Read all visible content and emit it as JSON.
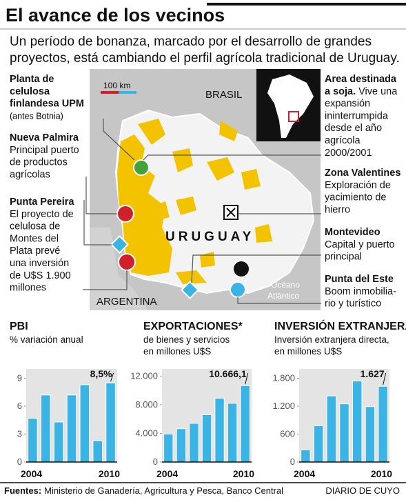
{
  "header": {
    "title": "El avance de los vecinos",
    "subtitle": [
      "Un período de bonanza, marcado por el desarrollo de grandes",
      "proyectos, está cambiando el perfil agrícola tradicional de Uruguay."
    ]
  },
  "map": {
    "scale": "100 km",
    "brasil": "BRASIL",
    "uruguay": "URUGUAY",
    "argentina": "ARGENTINA",
    "ocean": [
      "Océano",
      "Atlántico"
    ]
  },
  "annotations": {
    "upm": {
      "title": [
        "Planta de",
        "celulosa",
        "finlandesa UPM"
      ],
      "text": [
        "(antes Botnia)"
      ]
    },
    "palmira": {
      "title": [
        "Nueva Palmira"
      ],
      "text": [
        "Principal puerto",
        "de productos",
        "agrícolas"
      ]
    },
    "pereira": {
      "title": [
        "Punta Pereira"
      ],
      "text": [
        "El proyecto de",
        "celulosa de",
        "Montes del",
        "Plata prevé",
        "una inversión",
        "de U$S 1.900",
        "millones"
      ]
    },
    "soja": {
      "title": [
        "Area destinada",
        "a soja."
      ],
      "text": [
        "Vive una",
        "expansión",
        "ininterrumpida",
        "desde el año",
        "agrícola",
        "2000/2001"
      ]
    },
    "valentines": {
      "title": [
        "Zona Valentines"
      ],
      "text": [
        "Exploración de",
        "yacimiento de",
        "hierro"
      ]
    },
    "montevideo": {
      "title": [
        "Montevideo"
      ],
      "text": [
        "Capital y puerto",
        "principal"
      ]
    },
    "este": {
      "title": [
        "Punta del Este"
      ],
      "text": [
        "Boom inmobilia-",
        "rio y turístico"
      ]
    }
  },
  "chart_data": [
    {
      "type": "bar",
      "title": "PBI",
      "subtitle": [
        "% variación anual"
      ],
      "categories": [
        "2004",
        null,
        null,
        null,
        null,
        null,
        "2010"
      ],
      "values": [
        4.7,
        7.2,
        4.3,
        7.2,
        8.3,
        2.3,
        8.5
      ],
      "value_labels": [
        null,
        null,
        null,
        null,
        null,
        null,
        "8,5%"
      ],
      "color": "#3bb3e4",
      "ylim": [
        0,
        10
      ],
      "yticks": [
        0,
        3,
        6,
        9
      ],
      "grid": false
    },
    {
      "type": "bar",
      "title": "EXPORTACIONES*",
      "subtitle": [
        "de bienes y servicios",
        "en millones U$S"
      ],
      "categories": [
        "2004",
        null,
        null,
        null,
        null,
        null,
        "2010"
      ],
      "values": [
        3900,
        4650,
        5400,
        6600,
        8900,
        8200,
        10666.1
      ],
      "value_labels": [
        null,
        null,
        null,
        null,
        null,
        null,
        "10.666,1"
      ],
      "color": "#3bb3e4",
      "ylim": [
        0,
        13000
      ],
      "yticks": [
        0,
        {
          "value": 4000,
          "label": "4.000"
        },
        {
          "value": 8000,
          "label": "8.000"
        },
        {
          "value": 12000,
          "label": "12.000"
        }
      ],
      "grid": false
    },
    {
      "type": "bar",
      "title": "INVERSIÓN EXTRANJERA",
      "subtitle": [
        "Inversión extranjera directa,",
        "en millones U$S"
      ],
      "categories": [
        "2004",
        null,
        null,
        null,
        null,
        null,
        "2010"
      ],
      "values": [
        260,
        780,
        1420,
        1250,
        1740,
        1190,
        1627
      ],
      "value_labels": [
        null,
        null,
        null,
        null,
        null,
        null,
        "1.627"
      ],
      "color": "#3bb3e4",
      "ylim": [
        0,
        2000
      ],
      "yticks": [
        0,
        600,
        {
          "value": 1200,
          "label": "1.200"
        },
        {
          "value": 1800,
          "label": "1.800"
        }
      ],
      "grid": false
    }
  ],
  "footer": {
    "label": "Fuentes:",
    "sources": "Ministerio de Ganadería, Agricultura y Pesca, Banco Central",
    "brand": "DIARIO DE CUYO"
  }
}
